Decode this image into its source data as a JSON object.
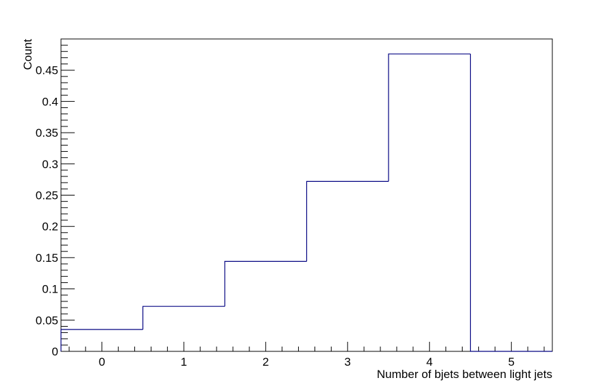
{
  "chart_data": {
    "type": "bar",
    "style": "step-histogram",
    "title": "",
    "xlabel": "Number of bjets between light jets",
    "ylabel": "Count",
    "bin_edges": [
      -0.5,
      0.5,
      1.5,
      2.5,
      3.5,
      4.5,
      5.5
    ],
    "categories": [
      "0",
      "1",
      "2",
      "3",
      "4",
      "5"
    ],
    "values": [
      0.035,
      0.072,
      0.144,
      0.272,
      0.476,
      0.0
    ],
    "xlim": [
      -0.5,
      5.5
    ],
    "ylim": [
      0,
      0.5
    ],
    "x_ticks": [
      "0",
      "1",
      "2",
      "3",
      "4",
      "5"
    ],
    "y_ticks": [
      "0",
      "0.05",
      "0.1",
      "0.15",
      "0.2",
      "0.25",
      "0.3",
      "0.35",
      "0.4",
      "0.45"
    ],
    "grid": false,
    "legend": "none",
    "line_color": "#000080",
    "frame_color": "#000000"
  }
}
